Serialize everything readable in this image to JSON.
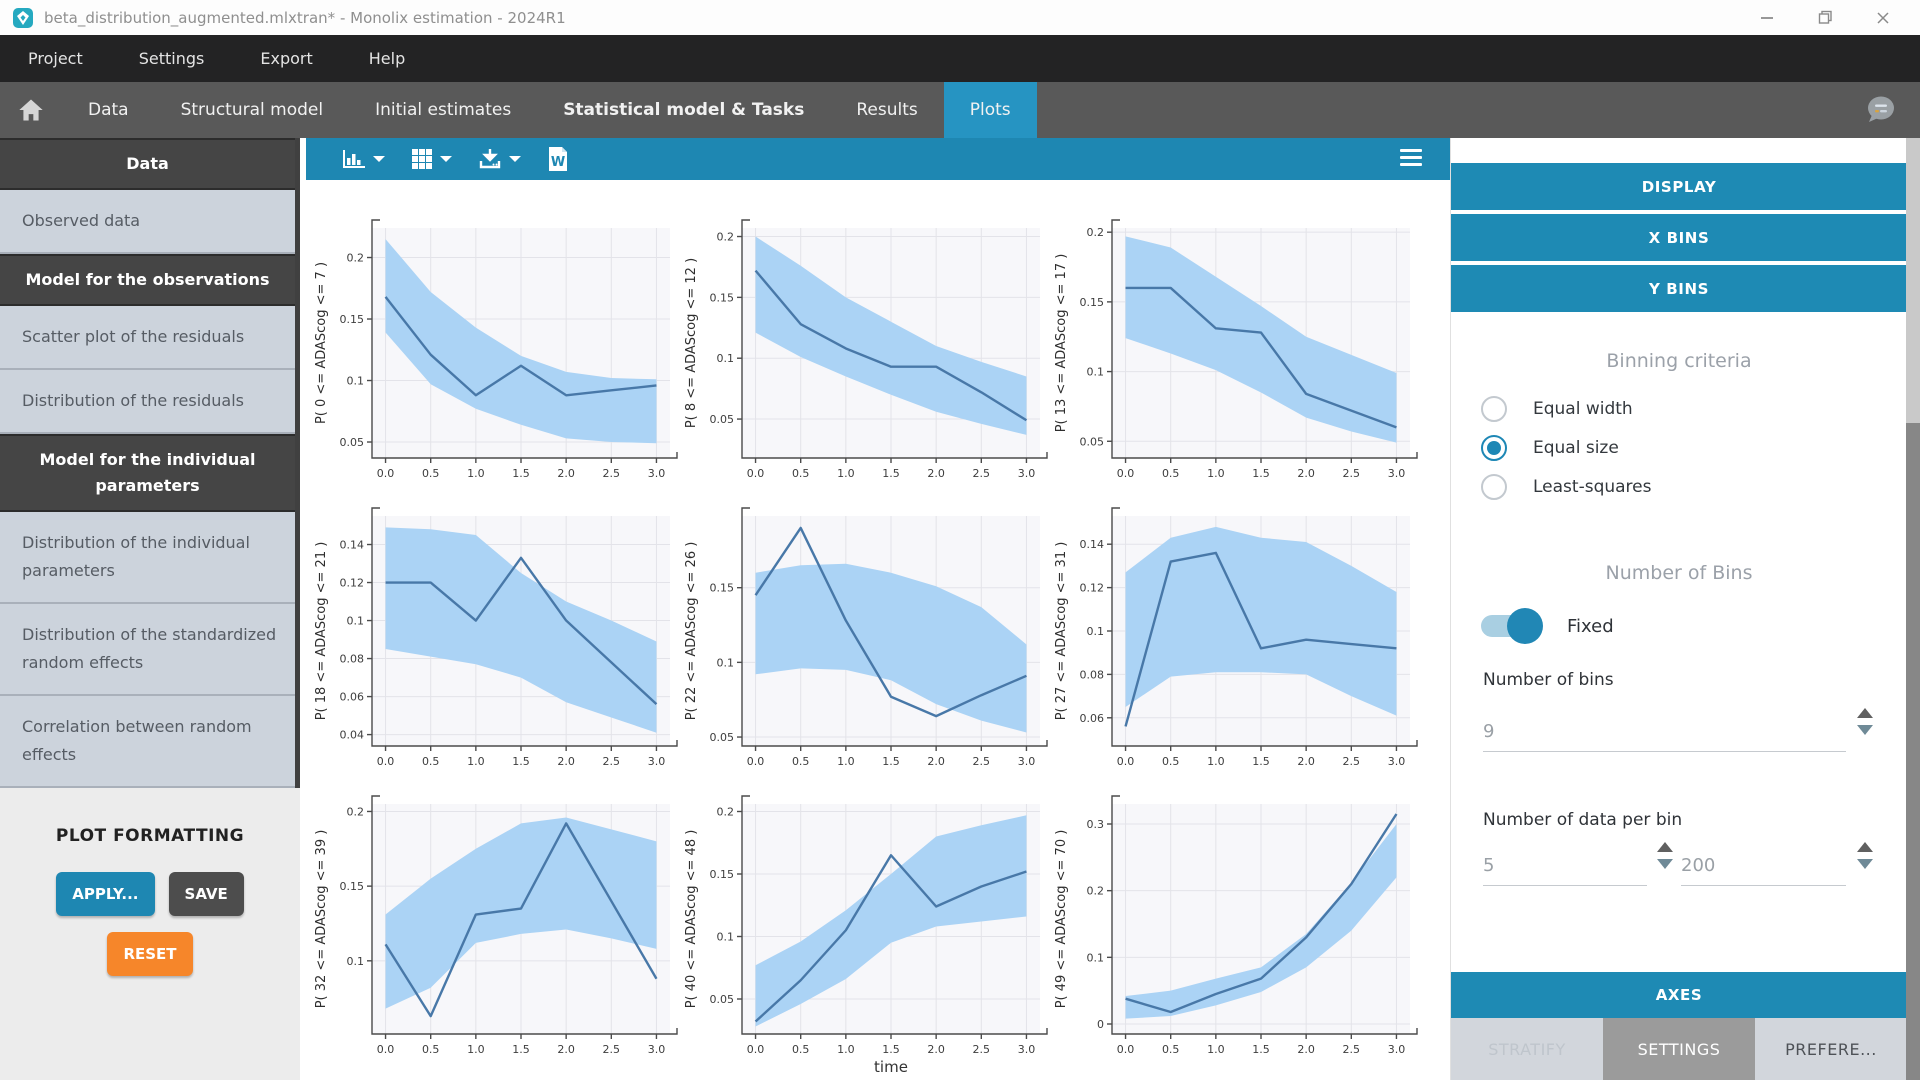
{
  "window": {
    "title": "beta_distribution_augmented.mlxtran* - Monolix estimation - 2024R1",
    "controls": [
      "minimize-icon",
      "restore-icon",
      "close-icon"
    ],
    "app_icon": "monolix-logo"
  },
  "menu": {
    "items": [
      "Project",
      "Settings",
      "Export",
      "Help"
    ]
  },
  "tabs": {
    "home_icon": "home-icon",
    "items": [
      {
        "label": "Data",
        "bold": false,
        "active": false
      },
      {
        "label": "Structural model",
        "bold": false,
        "active": false
      },
      {
        "label": "Initial estimates",
        "bold": false,
        "active": false
      },
      {
        "label": "Statistical model & Tasks",
        "bold": true,
        "active": false
      },
      {
        "label": "Results",
        "bold": false,
        "active": false
      },
      {
        "label": "Plots",
        "bold": false,
        "active": true
      }
    ],
    "right_icon": "comments-bubble-icon"
  },
  "sidebar": {
    "items": [
      {
        "label": "Data",
        "style": "header"
      },
      {
        "label": "Observed data",
        "style": "item"
      },
      {
        "label": "Model for the observations",
        "style": "header"
      },
      {
        "label": "Scatter plot of the residuals",
        "style": "item"
      },
      {
        "label": "Distribution of the residuals",
        "style": "item"
      },
      {
        "label": "Model for the individual parameters",
        "style": "header"
      },
      {
        "label": "Distribution of the individual parameters",
        "style": "item"
      },
      {
        "label": "Distribution of the standardized random effects",
        "style": "item"
      },
      {
        "label": "Correlation between random effects",
        "style": "item"
      }
    ],
    "plot_formatting": {
      "title": "PLOT FORMATTING",
      "apply": "APPLY...",
      "save": "SAVE",
      "reset": "RESET"
    }
  },
  "plot_toolbar": {
    "buttons": [
      {
        "icon": "bar-chart-icon",
        "dropdown": true
      },
      {
        "icon": "grid-layout-icon",
        "dropdown": true
      },
      {
        "icon": "download-icon",
        "dropdown": true
      },
      {
        "icon": "word-document-icon",
        "dropdown": false
      }
    ],
    "menu_icon": "hamburger-icon"
  },
  "panel": {
    "display_label": "DISPLAY",
    "x_bins_label": "X BINS",
    "y_bins_label": "Y BINS",
    "binning": {
      "title": "Binning criteria",
      "options": [
        {
          "label": "Equal width",
          "selected": false
        },
        {
          "label": "Equal size",
          "selected": true
        },
        {
          "label": "Least-squares",
          "selected": false
        }
      ]
    },
    "number_of_bins": {
      "title": "Number of Bins",
      "toggle_label": "Fixed",
      "toggle_on": true,
      "bins_label": "Number of bins",
      "bins_value": "9",
      "per_bin_label": "Number of data per bin",
      "per_bin_min": "5",
      "per_bin_max": "200"
    },
    "axes_label": "AXES",
    "bottom_tabs": [
      {
        "label": "STRATIFY",
        "state": "disabled"
      },
      {
        "label": "SETTINGS",
        "state": "active"
      },
      {
        "label": "PREFERE...",
        "state": "default"
      }
    ]
  },
  "colors": {
    "accent_blue": "#1e87b2",
    "active_tab_blue": "#2694c2",
    "orange": "#f6862a",
    "dark_button": "#4d4d4d",
    "sidebar_item_bg": "#ccd3dc",
    "sidebar_header_bg": "#454545",
    "band_blue": "#abd3f5",
    "line_blue": "#4878a8"
  },
  "chart_data": {
    "type": "line",
    "note": "3x3 grid of probability-vs-time curves (empirical line) with 90% prediction-interval band",
    "grid": [
      3,
      3
    ],
    "x": [
      0,
      0.5,
      1,
      1.5,
      2,
      2.5,
      3
    ],
    "xticks": [
      "0.0",
      "0.5",
      "1.0",
      "1.5",
      "2.0",
      "2.5",
      "3.0"
    ],
    "xlabel": "time",
    "xlim": [
      -0.15,
      3.15
    ],
    "legend": "none",
    "band_color": "#abd3f5",
    "line_color": "#4878a8",
    "charts": [
      {
        "ylabel": "P( 0 <= ADAScog <= 7 )",
        "ylim": [
          0.037,
          0.224
        ],
        "yticks": [
          0.05,
          0.1,
          0.15,
          0.2
        ],
        "ytick_labels": [
          "0.05",
          "0.1",
          "0.15",
          "0.2"
        ],
        "line": [
          0.168,
          0.121,
          0.088,
          0.112,
          0.088,
          0.092,
          0.096
        ],
        "upper": [
          0.215,
          0.172,
          0.143,
          0.12,
          0.107,
          0.102,
          0.101
        ],
        "lower": [
          0.139,
          0.097,
          0.077,
          0.064,
          0.053,
          0.05,
          0.049
        ]
      },
      {
        "ylabel": "P( 8 <= ADAScog <= 12 )",
        "ylim": [
          0.018,
          0.207
        ],
        "yticks": [
          0.05,
          0.1,
          0.15,
          0.2
        ],
        "ytick_labels": [
          "0.05",
          "0.1",
          "0.15",
          "0.2"
        ],
        "line": [
          0.172,
          0.128,
          0.108,
          0.093,
          0.093,
          0.072,
          0.049
        ],
        "upper": [
          0.2,
          0.176,
          0.15,
          0.13,
          0.11,
          0.097,
          0.085
        ],
        "lower": [
          0.121,
          0.101,
          0.085,
          0.07,
          0.056,
          0.046,
          0.037
        ]
      },
      {
        "ylabel": "P( 13 <= ADAScog <= 17 )",
        "ylim": [
          0.038,
          0.203
        ],
        "yticks": [
          0.05,
          0.1,
          0.15,
          0.2
        ],
        "ytick_labels": [
          "0.05",
          "0.1",
          "0.15",
          "0.2"
        ],
        "line": [
          0.16,
          0.16,
          0.131,
          0.128,
          0.084,
          0.072,
          0.06
        ],
        "upper": [
          0.197,
          0.189,
          0.168,
          0.147,
          0.125,
          0.112,
          0.099
        ],
        "lower": [
          0.124,
          0.113,
          0.101,
          0.085,
          0.067,
          0.057,
          0.049
        ]
      },
      {
        "ylabel": "P( 18 <= ADAScog <= 21 )",
        "ylim": [
          0.034,
          0.155
        ],
        "yticks": [
          0.04,
          0.06,
          0.08,
          0.1,
          0.12,
          0.14
        ],
        "ytick_labels": [
          "0.04",
          "0.06",
          "0.08",
          "0.1",
          "0.12",
          "0.14"
        ],
        "line": [
          0.12,
          0.12,
          0.1,
          0.133,
          0.1,
          0.078,
          0.056
        ],
        "upper": [
          0.149,
          0.148,
          0.145,
          0.125,
          0.11,
          0.1,
          0.089
        ],
        "lower": [
          0.085,
          0.081,
          0.077,
          0.07,
          0.057,
          0.049,
          0.041
        ]
      },
      {
        "ylabel": "P( 22 <= ADAScog <= 26 )",
        "ylim": [
          0.044,
          0.198
        ],
        "yticks": [
          0.05,
          0.1,
          0.15
        ],
        "ytick_labels": [
          "0.05",
          "0.1",
          "0.15"
        ],
        "line": [
          0.145,
          0.19,
          0.128,
          0.077,
          0.064,
          0.078,
          0.091
        ],
        "upper": [
          0.16,
          0.165,
          0.166,
          0.16,
          0.151,
          0.137,
          0.112
        ],
        "lower": [
          0.092,
          0.096,
          0.095,
          0.088,
          0.072,
          0.061,
          0.053
        ]
      },
      {
        "ylabel": "P( 27 <= ADAScog <= 31 )",
        "ylim": [
          0.047,
          0.153
        ],
        "yticks": [
          0.06,
          0.08,
          0.1,
          0.12,
          0.14
        ],
        "ytick_labels": [
          "0.06",
          "0.08",
          "0.1",
          "0.12",
          "0.14"
        ],
        "line": [
          0.056,
          0.132,
          0.136,
          0.092,
          0.096,
          0.094,
          0.092
        ],
        "upper": [
          0.127,
          0.143,
          0.148,
          0.143,
          0.141,
          0.13,
          0.118
        ],
        "lower": [
          0.065,
          0.079,
          0.081,
          0.081,
          0.08,
          0.07,
          0.061
        ]
      },
      {
        "ylabel": "P( 32 <= ADAScog <= 39 )",
        "ylim": [
          0.051,
          0.205
        ],
        "yticks": [
          0.1,
          0.15,
          0.2
        ],
        "ytick_labels": [
          "0.1",
          "0.15",
          "0.2"
        ],
        "line": [
          0.111,
          0.063,
          0.131,
          0.135,
          0.192,
          0.14,
          0.088
        ],
        "upper": [
          0.131,
          0.155,
          0.175,
          0.192,
          0.196,
          0.188,
          0.18
        ],
        "lower": [
          0.068,
          0.082,
          0.112,
          0.118,
          0.121,
          0.115,
          0.108
        ]
      },
      {
        "ylabel": "P( 40 <= ADAScog <= 48 )",
        "ylim": [
          0.022,
          0.206
        ],
        "yticks": [
          0.05,
          0.1,
          0.15,
          0.2
        ],
        "ytick_labels": [
          "0.05",
          "0.1",
          "0.15",
          "0.2"
        ],
        "line": [
          0.032,
          0.065,
          0.105,
          0.165,
          0.124,
          0.14,
          0.152
        ],
        "upper": [
          0.077,
          0.096,
          0.121,
          0.15,
          0.18,
          0.189,
          0.197
        ],
        "lower": [
          0.028,
          0.046,
          0.066,
          0.095,
          0.108,
          0.112,
          0.116
        ]
      },
      {
        "ylabel": "P( 49 <= ADAScog <= 70 )",
        "ylim": [
          -0.015,
          0.33
        ],
        "yticks": [
          0,
          0.1,
          0.2,
          0.3
        ],
        "ytick_labels": [
          "0",
          "0.1",
          "0.2",
          "0.3"
        ],
        "line": [
          0.038,
          0.018,
          0.045,
          0.068,
          0.13,
          0.21,
          0.315
        ],
        "upper": [
          0.042,
          0.05,
          0.068,
          0.085,
          0.135,
          0.212,
          0.3
        ],
        "lower": [
          0.008,
          0.012,
          0.028,
          0.048,
          0.085,
          0.14,
          0.22
        ]
      }
    ]
  }
}
